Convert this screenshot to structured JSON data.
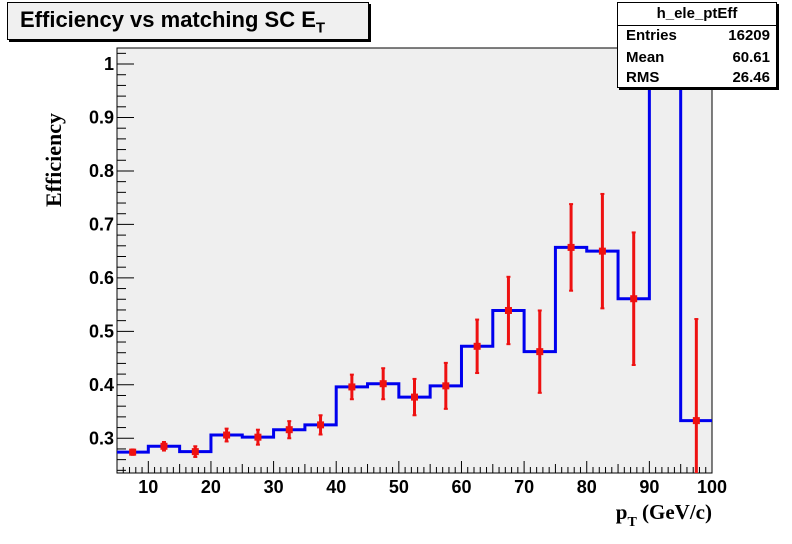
{
  "title": {
    "main": "Efficiency vs matching SC E",
    "sub": "T"
  },
  "stats": {
    "name": "h_ele_ptEff",
    "rows": [
      {
        "key": "Entries",
        "value": "16209"
      },
      {
        "key": "Mean",
        "value": "60.61"
      },
      {
        "key": "RMS",
        "value": "26.46"
      }
    ]
  },
  "chart_data": {
    "type": "histogram",
    "xlabel": {
      "main": "p",
      "sub": "T",
      "rest": " (GeV/c)"
    },
    "ylabel": "Efficiency",
    "xlim": [
      5,
      100
    ],
    "ylim": [
      0.235,
      1.03
    ],
    "x_ticks": [
      10,
      20,
      30,
      40,
      50,
      60,
      70,
      80,
      90,
      100
    ],
    "y_ticks": [
      0.3,
      0.4,
      0.5,
      0.6,
      0.7,
      0.8,
      0.9,
      1
    ],
    "y_tick_labels": [
      "0.3",
      "0.4",
      "0.5",
      "0.6",
      "0.7",
      "0.8",
      "0.9",
      "1"
    ],
    "bin_edges": [
      5,
      10,
      15,
      20,
      25,
      30,
      35,
      40,
      45,
      50,
      55,
      60,
      65,
      70,
      75,
      80,
      85,
      90,
      95,
      100
    ],
    "values": [
      0.274,
      0.285,
      0.275,
      0.306,
      0.302,
      0.316,
      0.325,
      0.396,
      0.402,
      0.377,
      0.398,
      0.472,
      0.539,
      0.462,
      0.657,
      0.65,
      0.561,
      1.0,
      0.333
    ],
    "points": [
      {
        "x": 7.5,
        "y": 0.274,
        "err": 0.005
      },
      {
        "x": 12.5,
        "y": 0.285,
        "err": 0.008
      },
      {
        "x": 17.5,
        "y": 0.275,
        "err": 0.01
      },
      {
        "x": 22.5,
        "y": 0.306,
        "err": 0.012
      },
      {
        "x": 27.5,
        "y": 0.302,
        "err": 0.014
      },
      {
        "x": 32.5,
        "y": 0.316,
        "err": 0.016
      },
      {
        "x": 37.5,
        "y": 0.325,
        "err": 0.018
      },
      {
        "x": 42.5,
        "y": 0.396,
        "err": 0.023
      },
      {
        "x": 47.5,
        "y": 0.402,
        "err": 0.029
      },
      {
        "x": 52.5,
        "y": 0.377,
        "err": 0.034
      },
      {
        "x": 57.5,
        "y": 0.398,
        "err": 0.043
      },
      {
        "x": 62.5,
        "y": 0.472,
        "err": 0.05
      },
      {
        "x": 67.5,
        "y": 0.539,
        "err": 0.063
      },
      {
        "x": 72.5,
        "y": 0.462,
        "err": 0.077
      },
      {
        "x": 77.5,
        "y": 0.657,
        "err": 0.081
      },
      {
        "x": 82.5,
        "y": 0.65,
        "err": 0.107
      },
      {
        "x": 87.5,
        "y": 0.561,
        "err": 0.124
      },
      {
        "x": 92.5,
        "y": 1.0,
        "err": 0.0
      },
      {
        "x": 97.5,
        "y": 0.333,
        "err": 0.19
      }
    ],
    "colors": {
      "line": "#0000ee",
      "points": "#ee1111",
      "frame_bg": "#efefef",
      "axis": "#000000"
    }
  }
}
